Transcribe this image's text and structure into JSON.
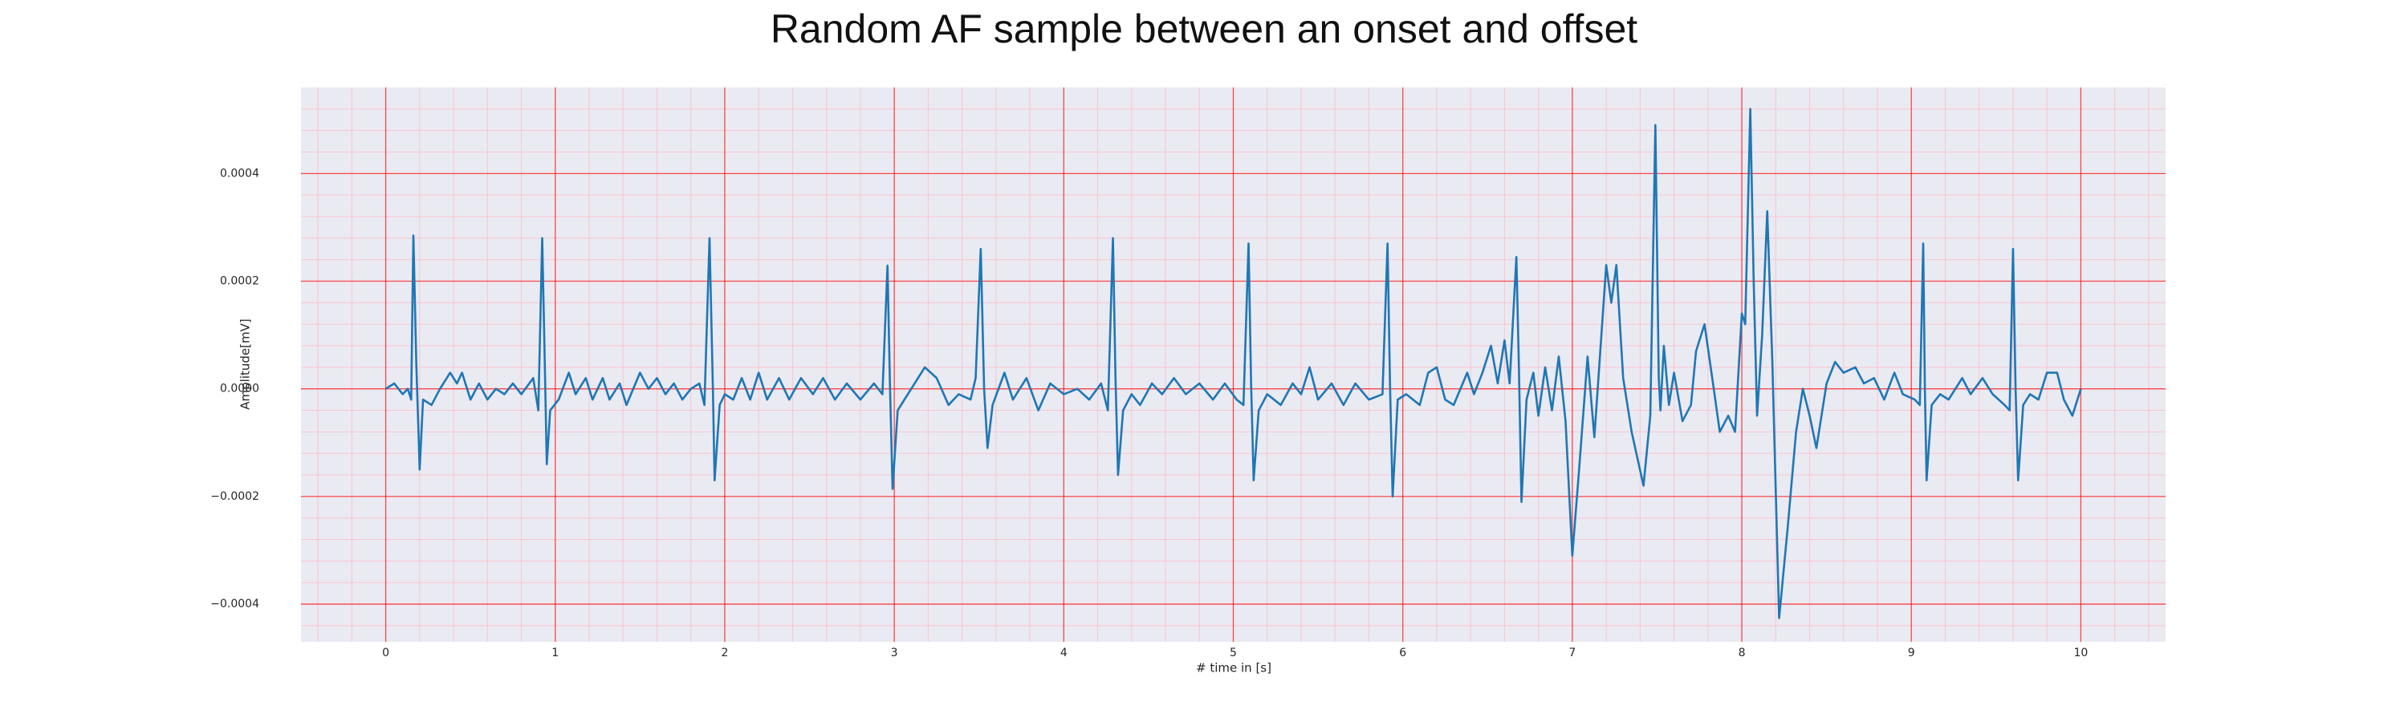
{
  "chart_data": {
    "type": "line",
    "title": "Random AF sample between an onset and offset",
    "xlabel": "# time in [s]",
    "ylabel": "Amplitude[mV]",
    "xlim": [
      -0.5,
      10.5
    ],
    "ylim": [
      -0.00047,
      0.00056
    ],
    "xticks": [
      0,
      1,
      2,
      3,
      4,
      5,
      6,
      7,
      8,
      9,
      10
    ],
    "yticks": [
      {
        "value": -0.0004,
        "label": "−0.0004"
      },
      {
        "value": -0.0002,
        "label": "−0.0002"
      },
      {
        "value": 0,
        "label": "0.0000"
      },
      {
        "value": 0.0002,
        "label": "0.0002"
      },
      {
        "value": 0.0004,
        "label": "0.0004"
      }
    ],
    "grid": true,
    "minor_grid": true,
    "minor_per_major": 5,
    "grid_color": "#ff0000",
    "minor_grid_color": "#ffb6c1",
    "background": "#eaeaf2",
    "color": "#1f77b4",
    "x": [
      0,
      0.05,
      0.1,
      0.13,
      0.15,
      0.163,
      0.18,
      0.2,
      0.22,
      0.27,
      0.32,
      0.38,
      0.42,
      0.45,
      0.5,
      0.55,
      0.6,
      0.65,
      0.7,
      0.75,
      0.8,
      0.87,
      0.9,
      0.923,
      0.94,
      0.95,
      0.97,
      1.02,
      1.08,
      1.12,
      1.18,
      1.22,
      1.28,
      1.32,
      1.38,
      1.42,
      1.5,
      1.55,
      1.6,
      1.65,
      1.7,
      1.75,
      1.8,
      1.85,
      1.88,
      1.91,
      1.93,
      1.94,
      1.97,
      2.0,
      2.05,
      2.1,
      2.15,
      2.2,
      2.25,
      2.32,
      2.38,
      2.45,
      2.52,
      2.58,
      2.65,
      2.72,
      2.8,
      2.88,
      2.93,
      2.96,
      2.975,
      2.99,
      3.02,
      3.1,
      3.18,
      3.25,
      3.32,
      3.38,
      3.45,
      3.48,
      3.51,
      3.53,
      3.55,
      3.58,
      3.65,
      3.7,
      3.78,
      3.85,
      3.92,
      4.0,
      4.08,
      4.15,
      4.22,
      4.26,
      4.29,
      4.305,
      4.32,
      4.35,
      4.4,
      4.45,
      4.52,
      4.58,
      4.65,
      4.72,
      4.8,
      4.88,
      4.95,
      5.02,
      5.06,
      5.09,
      5.105,
      5.12,
      5.15,
      5.2,
      5.28,
      5.35,
      5.4,
      5.45,
      5.5,
      5.58,
      5.65,
      5.72,
      5.8,
      5.88,
      5.91,
      5.925,
      5.94,
      5.97,
      6.02,
      6.1,
      6.15,
      6.2,
      6.25,
      6.3,
      6.38,
      6.42,
      6.47,
      6.52,
      6.56,
      6.6,
      6.63,
      6.67,
      6.685,
      6.7,
      6.73,
      6.77,
      6.8,
      6.84,
      6.88,
      6.92,
      6.96,
      7.0,
      7.04,
      7.09,
      7.13,
      7.2,
      7.23,
      7.26,
      7.3,
      7.35,
      7.42,
      7.46,
      7.49,
      7.51,
      7.52,
      7.54,
      7.57,
      7.6,
      7.65,
      7.7,
      7.73,
      7.78,
      7.83,
      7.87,
      7.92,
      7.96,
      8.0,
      8.02,
      8.05,
      8.07,
      8.09,
      8.12,
      8.15,
      8.18,
      8.22,
      8.27,
      8.32,
      8.36,
      8.4,
      8.44,
      8.5,
      8.55,
      8.6,
      8.67,
      8.72,
      8.78,
      8.84,
      8.9,
      8.95,
      9.02,
      9.05,
      9.07,
      9.08,
      9.09,
      9.12,
      9.17,
      9.22,
      9.3,
      9.35,
      9.42,
      9.48,
      9.55,
      9.58,
      9.6,
      9.615,
      9.63,
      9.66,
      9.7,
      9.75,
      9.8,
      9.86,
      9.9,
      9.95,
      10
    ],
    "values": [
      0,
      1e-05,
      -1e-05,
      0,
      -2e-05,
      0.000285,
      5e-05,
      -0.00015,
      -2e-05,
      -3e-05,
      0,
      3e-05,
      1e-05,
      3e-05,
      -2e-05,
      1e-05,
      -2e-05,
      0,
      -1e-05,
      1e-05,
      -1e-05,
      2e-05,
      -4e-05,
      0.00028,
      2e-05,
      -0.00014,
      -4e-05,
      -2e-05,
      3e-05,
      -1e-05,
      2e-05,
      -2e-05,
      2e-05,
      -2e-05,
      1e-05,
      -3e-05,
      3e-05,
      0,
      2e-05,
      -1e-05,
      1e-05,
      -2e-05,
      0,
      1e-05,
      -3e-05,
      0.00028,
      0,
      -0.00017,
      -3e-05,
      -1e-05,
      -2e-05,
      2e-05,
      -2e-05,
      3e-05,
      -2e-05,
      2e-05,
      -2e-05,
      2e-05,
      -1e-05,
      2e-05,
      -2e-05,
      1e-05,
      -2e-05,
      1e-05,
      -1e-05,
      0.000229,
      0,
      -0.000186,
      -4e-05,
      0,
      4e-05,
      2e-05,
      -3e-05,
      -1e-05,
      -2e-05,
      2e-05,
      0.00026,
      0,
      -0.00011,
      -3e-05,
      3e-05,
      -2e-05,
      2e-05,
      -4e-05,
      1e-05,
      -1e-05,
      0,
      -2e-05,
      1e-05,
      -4e-05,
      0.00028,
      2e-05,
      -0.00016,
      -4e-05,
      -1e-05,
      -3e-05,
      1e-05,
      -1e-05,
      2e-05,
      -1e-05,
      1e-05,
      -2e-05,
      1e-05,
      -2e-05,
      -3e-05,
      0.00027,
      1e-05,
      -0.00017,
      -4e-05,
      -1e-05,
      -3e-05,
      1e-05,
      -1e-05,
      4e-05,
      -2e-05,
      1e-05,
      -3e-05,
      1e-05,
      -2e-05,
      -1e-05,
      0.00027,
      0,
      -0.0002,
      -2e-05,
      -1e-05,
      -3e-05,
      3e-05,
      4e-05,
      -2e-05,
      -3e-05,
      3e-05,
      -1e-05,
      3e-05,
      8e-05,
      1e-05,
      9e-05,
      1e-05,
      0.000245,
      4e-05,
      -0.00021,
      -2e-05,
      3e-05,
      -5e-05,
      4e-05,
      -4e-05,
      6e-05,
      -6e-05,
      -0.00031,
      -0.00015,
      6e-05,
      -9e-05,
      0.00023,
      0.00016,
      0.00023,
      2e-05,
      -8e-05,
      -0.00018,
      -5e-05,
      0.00049,
      2e-05,
      -4e-05,
      8e-05,
      -3e-05,
      3e-05,
      -6e-05,
      -3e-05,
      7e-05,
      0.00012,
      1e-05,
      -8e-05,
      -5e-05,
      -8e-05,
      0.00014,
      0.00012,
      0.00052,
      0.0002,
      -5e-05,
      0.0001,
      0.00033,
      5e-05,
      -0.000426,
      -0.00026,
      -8e-05,
      0,
      -5e-05,
      -0.00011,
      1e-05,
      5e-05,
      3e-05,
      4e-05,
      1e-05,
      2e-05,
      -2e-05,
      3e-05,
      -1e-05,
      -2e-05,
      -3e-05,
      0.00027,
      0,
      -0.00017,
      -3e-05,
      -1e-05,
      -2e-05,
      2e-05,
      -1e-05,
      2e-05,
      -1e-05,
      -3e-05,
      -4e-05,
      0.00026,
      0,
      -0.00017,
      -3e-05,
      -1e-05,
      -2e-05,
      3e-05,
      3e-05,
      -2e-05,
      -5e-05,
      0
    ]
  }
}
